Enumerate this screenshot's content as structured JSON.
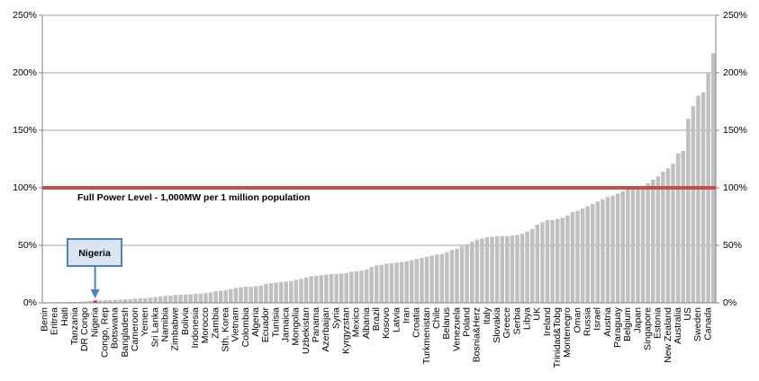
{
  "chart_data": {
    "type": "bar",
    "categories": [
      "Benin",
      null,
      "Eritrea",
      null,
      "Haiti",
      null,
      "Tanzania",
      null,
      "DR Congo",
      null,
      "Nigeria",
      null,
      "Congo, Rep",
      null,
      "Botswana",
      null,
      "Bangladesh",
      null,
      "Cameroon",
      null,
      "Yemen",
      null,
      "Sri Lanka",
      null,
      "Namibia",
      null,
      "Zimbabwe",
      null,
      "Bolivia",
      null,
      "Indonesia",
      null,
      "Morocco",
      null,
      "Zambia",
      null,
      "Sth. Korea",
      null,
      "Vietnam",
      null,
      "Colombia",
      null,
      "Algeria",
      null,
      "Ecuador",
      null,
      "Tunisia",
      null,
      "Jamaica",
      null,
      "Mongolia",
      null,
      "Uzbekistan",
      null,
      "Panama",
      null,
      "Azerbaijan",
      null,
      "Syria",
      null,
      "Kyrgyzstan",
      null,
      "Mexico",
      null,
      "Albania",
      null,
      "Brazil",
      null,
      "Kosovo",
      null,
      "Latvia",
      null,
      "Iran",
      null,
      "Croatia",
      null,
      "Turkmenistan",
      null,
      "Chile",
      null,
      "Belarus",
      null,
      "Venezuela",
      null,
      "Poland",
      null,
      "Bosnia&Herz",
      null,
      "Italy",
      null,
      "Slovakia",
      null,
      "Greece",
      null,
      "Serbia",
      null,
      "Libya",
      null,
      "UK",
      null,
      "Ireland",
      null,
      "Trinidad&Tobg",
      null,
      "Montenegro",
      null,
      "Oman",
      null,
      "Russia",
      null,
      "Israel",
      null,
      "Austria",
      null,
      "Paraguay",
      null,
      "Belgium",
      null,
      "Japan",
      null,
      "Singapore",
      null,
      "Estonia",
      null,
      "New Zealand",
      null,
      "Australia",
      null,
      "US",
      null,
      "Sweden",
      null,
      "Canada",
      null
    ],
    "values": [
      0.3,
      0.4,
      0.5,
      0.5,
      0.6,
      0.7,
      0.8,
      1,
      1.2,
      1.5,
      2,
      2,
      2.2,
      2.4,
      2.6,
      2.8,
      3,
      3.2,
      3.5,
      3.8,
      4,
      4.5,
      5,
      5.5,
      6,
      6.3,
      6.8,
      7,
      7.2,
      7.5,
      7.8,
      8,
      8.5,
      9,
      10,
      10.5,
      11,
      12,
      13,
      13.5,
      14,
      14,
      14.5,
      15,
      16.5,
      17,
      17.5,
      18,
      18.5,
      19,
      20,
      21,
      22,
      23,
      23.5,
      24,
      24.5,
      25,
      25,
      25.5,
      26,
      27,
      27.5,
      28,
      29,
      31,
      32.5,
      33,
      34,
      34.5,
      35,
      35.5,
      36,
      37,
      38,
      39,
      40,
      41,
      42,
      42.5,
      44,
      46,
      47,
      49,
      51,
      53,
      55,
      56,
      57,
      57.5,
      58,
      58,
      58,
      58.5,
      59,
      60,
      62,
      64,
      68,
      70,
      72,
      72,
      73,
      74,
      76,
      79,
      80,
      82,
      84,
      86,
      88,
      90,
      92,
      93,
      95,
      97,
      99,
      100,
      100,
      101,
      104,
      107,
      110,
      114,
      117,
      121,
      130,
      132,
      160,
      171,
      180,
      183,
      200,
      217
    ],
    "color": "#c0c0c0",
    "highlight_color": "#e8202a",
    "annotation": {
      "text": "Nigeria",
      "fill": "#dbe5f1",
      "border": "#4f81bd"
    },
    "reference_line": {
      "value": 100,
      "label": "Full Power Level -  1,000MW per 1 million population",
      "color": "#c0504d"
    },
    "ylim": [
      0,
      250
    ],
    "yticks": [
      {
        "value": 0,
        "label": "0%"
      },
      {
        "value": 50,
        "label": "50%"
      },
      {
        "value": 100,
        "label": "100%"
      },
      {
        "value": 150,
        "label": "150%"
      },
      {
        "value": 200,
        "label": "200%"
      },
      {
        "value": 250,
        "label": "250%"
      }
    ],
    "y2lim": [
      0,
      250
    ],
    "y2ticks": [
      {
        "value": 0,
        "label": "0%"
      },
      {
        "value": 50,
        "label": "50%"
      },
      {
        "value": 100,
        "label": "100%"
      },
      {
        "value": 150,
        "label": "150%"
      },
      {
        "value": 200,
        "label": "200%"
      },
      {
        "value": 250,
        "label": "250%"
      }
    ],
    "grid": true
  }
}
